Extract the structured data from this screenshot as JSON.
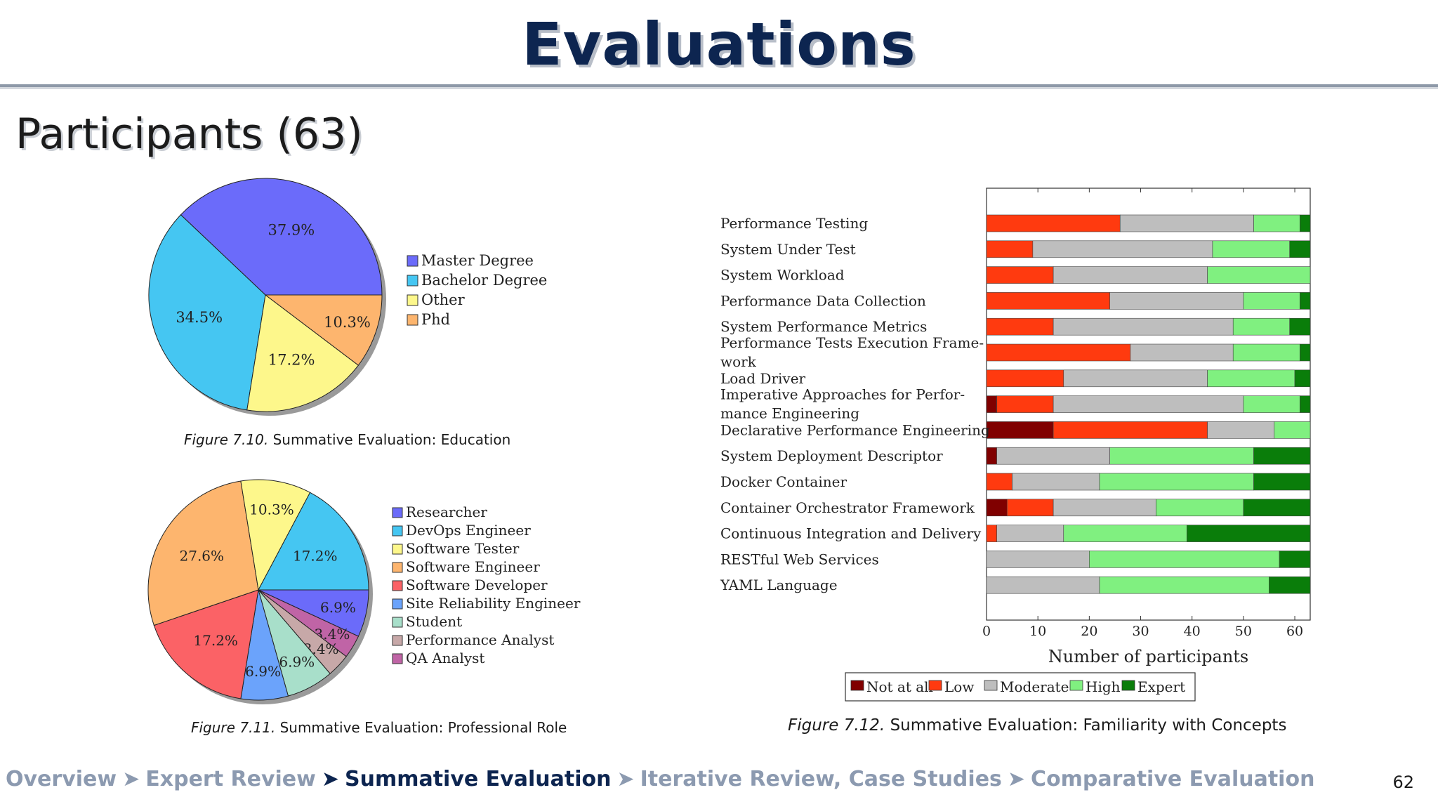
{
  "slide": {
    "title": "Evaluations",
    "section_title": "Participants (63)",
    "page_number": "62"
  },
  "breadcrumb": [
    {
      "label": "Overview",
      "active": false
    },
    {
      "label": "Expert Review",
      "active": false
    },
    {
      "label": "Summative Evaluation",
      "active": true
    },
    {
      "label": "Iterative Review, Case Studies",
      "active": false
    },
    {
      "label": "Comparative Evaluation",
      "active": false
    }
  ],
  "breadcrumb_separator": "➤",
  "chart_data": [
    {
      "type": "pie",
      "caption_number": "Figure 7.10.",
      "caption_text": "Summative Evaluation: Education",
      "slices": [
        {
          "label": "Master Degree",
          "value": 37.9,
          "value_label": "37.9%",
          "color": "#6b6bfa"
        },
        {
          "label": "Bachelor Degree",
          "value": 34.5,
          "value_label": "34.5%",
          "color": "#45c6f2"
        },
        {
          "label": "Other",
          "value": 17.2,
          "value_label": "17.2%",
          "color": "#fdf78b"
        },
        {
          "label": "Phd",
          "value": 10.3,
          "value_label": "10.3%",
          "color": "#fdb56e"
        }
      ]
    },
    {
      "type": "pie",
      "caption_number": "Figure 7.11.",
      "caption_text": "Summative Evaluation: Professional Role",
      "legend": [
        {
          "label": "Researcher",
          "color": "#6b6bfa"
        },
        {
          "label": "DevOps Engineer",
          "color": "#45c6f2"
        },
        {
          "label": "Software Tester",
          "color": "#fdf78b"
        },
        {
          "label": "Software Engineer",
          "color": "#fdb56e"
        },
        {
          "label": "Software Developer",
          "color": "#fb6266"
        },
        {
          "label": "Site Reliability Engineer",
          "color": "#6ba3fb"
        },
        {
          "label": "Student",
          "color": "#a8dfca"
        },
        {
          "label": "Performance Analyst",
          "color": "#c7a8a8"
        },
        {
          "label": "QA Analyst",
          "color": "#c064a6"
        }
      ],
      "slices": [
        {
          "label": "Researcher",
          "value": 6.9,
          "value_label": "6.9%",
          "color": "#6b6bfa"
        },
        {
          "label": "QA Analyst",
          "value": 3.4,
          "value_label": "3.4%",
          "color": "#c064a6"
        },
        {
          "label": "Performance Analyst",
          "value": 3.4,
          "value_label": "3.4%",
          "color": "#c7a8a8"
        },
        {
          "label": "Student",
          "value": 6.9,
          "value_label": "6.9%",
          "color": "#a8dfca"
        },
        {
          "label": "Site Reliability Engineer",
          "value": 6.9,
          "value_label": "6.9%",
          "color": "#6ba3fb"
        },
        {
          "label": "Software Developer",
          "value": 17.2,
          "value_label": "17.2%",
          "color": "#fb6266"
        },
        {
          "label": "Software Engineer",
          "value": 27.6,
          "value_label": "27.6%",
          "color": "#fdb56e"
        },
        {
          "label": "Software Tester",
          "value": 10.3,
          "value_label": "10.3%",
          "color": "#fdf78b"
        },
        {
          "label": "DevOps Engineer",
          "value": 17.2,
          "value_label": "17.2%",
          "color": "#45c6f2"
        }
      ]
    },
    {
      "type": "bar",
      "orientation": "horizontal",
      "stacked": true,
      "caption_number": "Figure 7.12.",
      "caption_text": "Summative Evaluation: Familiarity with Concepts",
      "xlabel": "Number of participants",
      "xlim": [
        0,
        63
      ],
      "xticks": [
        0,
        10,
        20,
        30,
        40,
        50,
        60
      ],
      "legend_position": "bottom",
      "categories": [
        [
          "Performance Testing"
        ],
        [
          "System Under Test"
        ],
        [
          "System Workload"
        ],
        [
          "Performance Data Collection"
        ],
        [
          "System Performance Metrics"
        ],
        [
          "Performance Tests Execution Frame-",
          "work"
        ],
        [
          "Load Driver"
        ],
        [
          "Imperative Approaches for Perfor-",
          "mance Engineering"
        ],
        [
          "Declarative Performance Engineering"
        ],
        [
          "System Deployment Descriptor"
        ],
        [
          "Docker Container"
        ],
        [
          "Container Orchestrator Framework"
        ],
        [
          "Continuous Integration and Delivery"
        ],
        [
          "RESTful Web Services"
        ],
        [
          "YAML Language"
        ]
      ],
      "series": [
        {
          "name": "Not at all",
          "color": "#800000",
          "values": [
            0,
            0,
            0,
            0,
            0,
            0,
            0,
            2,
            13,
            2,
            0,
            4,
            0,
            0,
            0
          ]
        },
        {
          "name": "Low",
          "color": "#ff3a0f",
          "values": [
            26,
            9,
            13,
            24,
            13,
            28,
            15,
            11,
            30,
            0,
            5,
            9,
            2,
            0,
            0
          ]
        },
        {
          "name": "Moderate",
          "color": "#bebebe",
          "values": [
            26,
            35,
            30,
            26,
            35,
            20,
            28,
            37,
            13,
            22,
            17,
            20,
            13,
            20,
            22
          ]
        },
        {
          "name": "High",
          "color": "#80f080",
          "values": [
            9,
            15,
            20,
            11,
            11,
            13,
            17,
            11,
            7,
            28,
            30,
            17,
            24,
            37,
            33
          ]
        },
        {
          "name": "Expert",
          "color": "#0a7d0a",
          "values": [
            2,
            4,
            0,
            2,
            4,
            2,
            3,
            2,
            0,
            11,
            11,
            13,
            24,
            6,
            8
          ]
        }
      ]
    }
  ]
}
